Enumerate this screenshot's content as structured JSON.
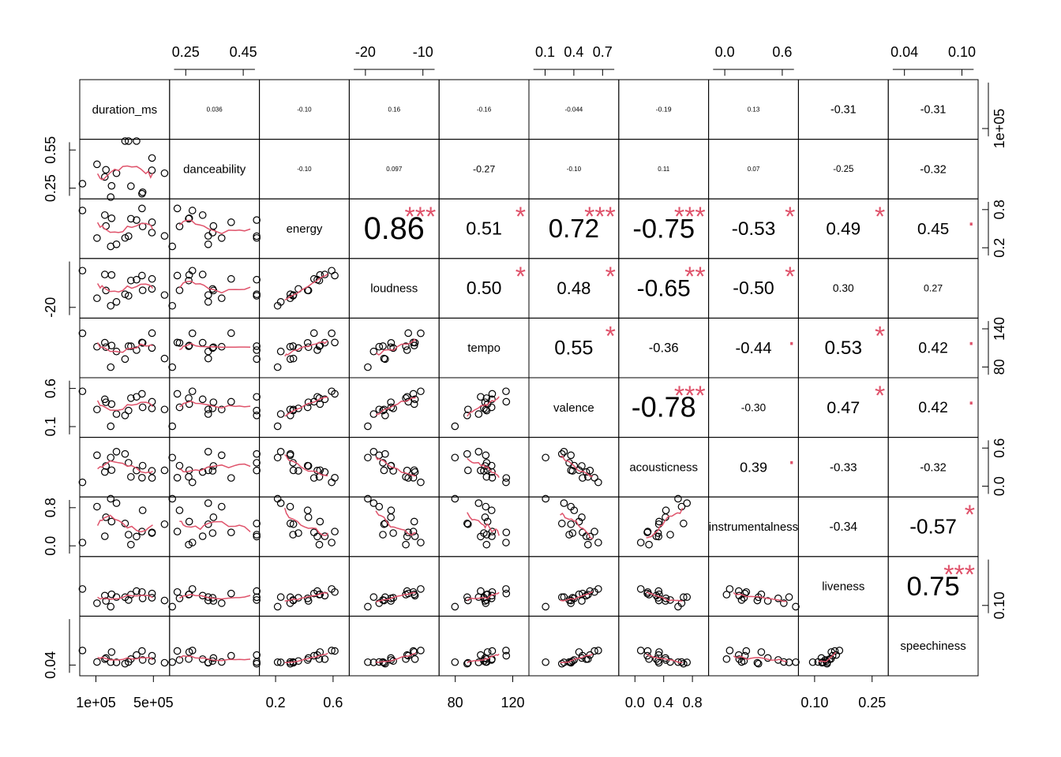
{
  "chart_data": {
    "type": "scatter",
    "variables": [
      "duration_ms",
      "danceability",
      "energy",
      "loudness",
      "tempo",
      "valence",
      "acousticness",
      "instrumentalness",
      "liveness",
      "speechiness"
    ],
    "colors": {
      "smooth_line": "#DF536B",
      "points": "#000000",
      "stars": "#DF536B"
    },
    "axes": {
      "bottom": [
        {
          "panel": 0,
          "ticks": [
            {
              "v": 100000,
              "label": "1e+05"
            },
            {
              "v": 500000,
              "label": "5e+05"
            }
          ]
        },
        {
          "panel": 2,
          "ticks": [
            {
              "v": 0.2,
              "label": "0.2"
            },
            {
              "v": 0.6,
              "label": "0.6"
            }
          ]
        },
        {
          "panel": 4,
          "ticks": [
            {
              "v": 80,
              "label": "80"
            },
            {
              "v": 120,
              "label": "120"
            }
          ]
        },
        {
          "panel": 6,
          "ticks": [
            {
              "v": 0.0,
              "label": "0.0"
            },
            {
              "v": 0.4,
              "label": "0.4"
            },
            {
              "v": 0.8,
              "label": "0.8"
            }
          ]
        },
        {
          "panel": 8,
          "ticks": [
            {
              "v": 0.1,
              "label": "0.10"
            },
            {
              "v": 0.25,
              "label": "0.25"
            }
          ]
        }
      ],
      "top": [
        {
          "panel": 1,
          "ticks": [
            {
              "v": 0.25,
              "label": "0.25"
            },
            {
              "v": 0.45,
              "label": "0.45"
            }
          ]
        },
        {
          "panel": 3,
          "ticks": [
            {
              "v": -20,
              "label": "-20"
            },
            {
              "v": -10,
              "label": "-10"
            }
          ]
        },
        {
          "panel": 5,
          "ticks": [
            {
              "v": 0.1,
              "label": "0.1"
            },
            {
              "v": 0.4,
              "label": "0.4"
            },
            {
              "v": 0.7,
              "label": "0.7"
            }
          ]
        },
        {
          "panel": 7,
          "ticks": [
            {
              "v": 0.0,
              "label": "0.0"
            },
            {
              "v": 0.6,
              "label": "0.6"
            }
          ]
        },
        {
          "panel": 9,
          "ticks": [
            {
              "v": 0.04,
              "label": "0.04"
            },
            {
              "v": 0.1,
              "label": "0.10"
            }
          ]
        }
      ],
      "left": [
        {
          "panel": 1,
          "ticks": [
            {
              "v": 0.25,
              "label": "0.25"
            },
            {
              "v": 0.55,
              "label": "0.55"
            }
          ]
        },
        {
          "panel": 3,
          "ticks": [
            {
              "v": -20,
              "label": "-20"
            }
          ]
        },
        {
          "panel": 5,
          "ticks": [
            {
              "v": 0.1,
              "label": "0.1"
            },
            {
              "v": 0.6,
              "label": "0.6"
            }
          ]
        },
        {
          "panel": 7,
          "ticks": [
            {
              "v": 0.0,
              "label": "0.0"
            },
            {
              "v": 0.8,
              "label": "0.8"
            }
          ]
        },
        {
          "panel": 9,
          "ticks": [
            {
              "v": 0.04,
              "label": "0.04"
            }
          ]
        }
      ],
      "right": [
        {
          "panel": 0,
          "ticks": [
            {
              "v": 100000,
              "label": "1e+05"
            }
          ]
        },
        {
          "panel": 2,
          "ticks": [
            {
              "v": 0.2,
              "label": "0.2"
            },
            {
              "v": 0.8,
              "label": "0.8"
            }
          ]
        },
        {
          "panel": 4,
          "ticks": [
            {
              "v": 80,
              "label": "80"
            },
            {
              "v": 140,
              "label": "140"
            }
          ]
        },
        {
          "panel": 6,
          "ticks": [
            {
              "v": 0.0,
              "label": "0.0"
            },
            {
              "v": 0.6,
              "label": "0.6"
            }
          ]
        },
        {
          "panel": 8,
          "ticks": [
            {
              "v": 0.1,
              "label": "0.10"
            }
          ]
        }
      ]
    },
    "correlations": [
      {
        "i": 0,
        "j": 1,
        "r": "0.036",
        "stars": ""
      },
      {
        "i": 0,
        "j": 2,
        "r": "-0.10",
        "stars": ""
      },
      {
        "i": 0,
        "j": 3,
        "r": "0.16",
        "stars": ""
      },
      {
        "i": 0,
        "j": 4,
        "r": "-0.16",
        "stars": ""
      },
      {
        "i": 0,
        "j": 5,
        "r": "-0.044",
        "stars": ""
      },
      {
        "i": 0,
        "j": 6,
        "r": "-0.19",
        "stars": ""
      },
      {
        "i": 0,
        "j": 7,
        "r": "0.13",
        "stars": ""
      },
      {
        "i": 0,
        "j": 8,
        "r": "-0.31",
        "stars": ""
      },
      {
        "i": 0,
        "j": 9,
        "r": "-0.31",
        "stars": ""
      },
      {
        "i": 1,
        "j": 2,
        "r": "-0.10",
        "stars": ""
      },
      {
        "i": 1,
        "j": 3,
        "r": "0.097",
        "stars": ""
      },
      {
        "i": 1,
        "j": 4,
        "r": "-0.27",
        "stars": ""
      },
      {
        "i": 1,
        "j": 5,
        "r": "-0.10",
        "stars": ""
      },
      {
        "i": 1,
        "j": 6,
        "r": "0.11",
        "stars": ""
      },
      {
        "i": 1,
        "j": 7,
        "r": "0.07",
        "stars": ""
      },
      {
        "i": 1,
        "j": 8,
        "r": "-0.25",
        "stars": ""
      },
      {
        "i": 1,
        "j": 9,
        "r": "-0.32",
        "stars": ""
      },
      {
        "i": 2,
        "j": 3,
        "r": "0.86",
        "stars": "***"
      },
      {
        "i": 2,
        "j": 4,
        "r": "0.51",
        "stars": "*"
      },
      {
        "i": 2,
        "j": 5,
        "r": "0.72",
        "stars": "***"
      },
      {
        "i": 2,
        "j": 6,
        "r": "-0.75",
        "stars": "***"
      },
      {
        "i": 2,
        "j": 7,
        "r": "-0.53",
        "stars": "*"
      },
      {
        "i": 2,
        "j": 8,
        "r": "0.49",
        "stars": "*"
      },
      {
        "i": 2,
        "j": 9,
        "r": "0.45",
        "stars": "."
      },
      {
        "i": 3,
        "j": 4,
        "r": "0.50",
        "stars": "*"
      },
      {
        "i": 3,
        "j": 5,
        "r": "0.48",
        "stars": "*"
      },
      {
        "i": 3,
        "j": 6,
        "r": "-0.65",
        "stars": "**"
      },
      {
        "i": 3,
        "j": 7,
        "r": "-0.50",
        "stars": "*"
      },
      {
        "i": 3,
        "j": 8,
        "r": "0.30",
        "stars": ""
      },
      {
        "i": 3,
        "j": 9,
        "r": "0.27",
        "stars": ""
      },
      {
        "i": 4,
        "j": 5,
        "r": "0.55",
        "stars": "*"
      },
      {
        "i": 4,
        "j": 6,
        "r": "-0.36",
        "stars": ""
      },
      {
        "i": 4,
        "j": 7,
        "r": "-0.44",
        "stars": "."
      },
      {
        "i": 4,
        "j": 8,
        "r": "0.53",
        "stars": "*"
      },
      {
        "i": 4,
        "j": 9,
        "r": "0.42",
        "stars": "."
      },
      {
        "i": 5,
        "j": 6,
        "r": "-0.78",
        "stars": "***"
      },
      {
        "i": 5,
        "j": 7,
        "r": "-0.30",
        "stars": ""
      },
      {
        "i": 5,
        "j": 8,
        "r": "0.47",
        "stars": "*"
      },
      {
        "i": 5,
        "j": 9,
        "r": "0.42",
        "stars": "."
      },
      {
        "i": 6,
        "j": 7,
        "r": "0.39",
        "stars": "."
      },
      {
        "i": 6,
        "j": 8,
        "r": "-0.33",
        "stars": ""
      },
      {
        "i": 6,
        "j": 9,
        "r": "-0.32",
        "stars": ""
      },
      {
        "i": 7,
        "j": 8,
        "r": "-0.34",
        "stars": ""
      },
      {
        "i": 7,
        "j": 9,
        "r": "-0.57",
        "stars": "*"
      },
      {
        "i": 8,
        "j": 9,
        "r": "0.75",
        "stars": "***"
      }
    ]
  }
}
